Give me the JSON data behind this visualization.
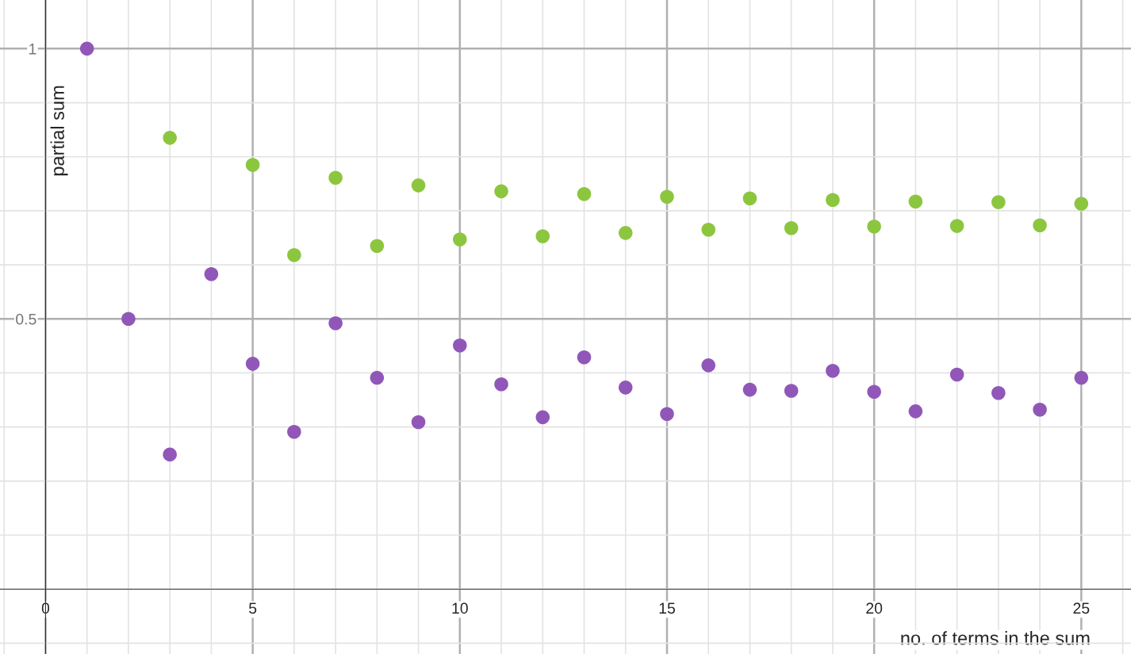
{
  "chart_data": {
    "type": "scatter",
    "xlabel": "no. of terms in the sum",
    "ylabel": "partial sum",
    "x": [
      1,
      2,
      3,
      4,
      5,
      6,
      7,
      8,
      9,
      10,
      11,
      12,
      13,
      14,
      15,
      16,
      17,
      18,
      19,
      20,
      21,
      22,
      23,
      24,
      25
    ],
    "series": [
      {
        "color": "#8cc63f",
        "values": [
          null,
          null,
          0.835,
          null,
          0.785,
          0.618,
          0.761,
          0.635,
          0.747,
          0.647,
          0.736,
          0.653,
          0.731,
          0.659,
          0.726,
          0.665,
          0.723,
          0.668,
          0.72,
          0.671,
          0.717,
          0.672,
          0.716,
          0.673,
          0.713
        ]
      },
      {
        "color": "#9157b8",
        "values": [
          1.0,
          0.5,
          0.249,
          0.583,
          0.417,
          0.291,
          0.492,
          0.391,
          0.309,
          0.451,
          0.379,
          0.318,
          0.429,
          0.373,
          0.324,
          0.414,
          0.369,
          0.367,
          0.404,
          0.365,
          0.329,
          0.397,
          0.363,
          0.332,
          0.391
        ]
      }
    ],
    "xlim": [
      -1.1,
      26.2
    ],
    "ylim": [
      -0.12,
      1.09
    ],
    "xticks": [
      0,
      5,
      10,
      15,
      20,
      25
    ],
    "yticks": [
      0.5,
      1
    ],
    "grid": true,
    "marker": "circle",
    "legend": false
  }
}
